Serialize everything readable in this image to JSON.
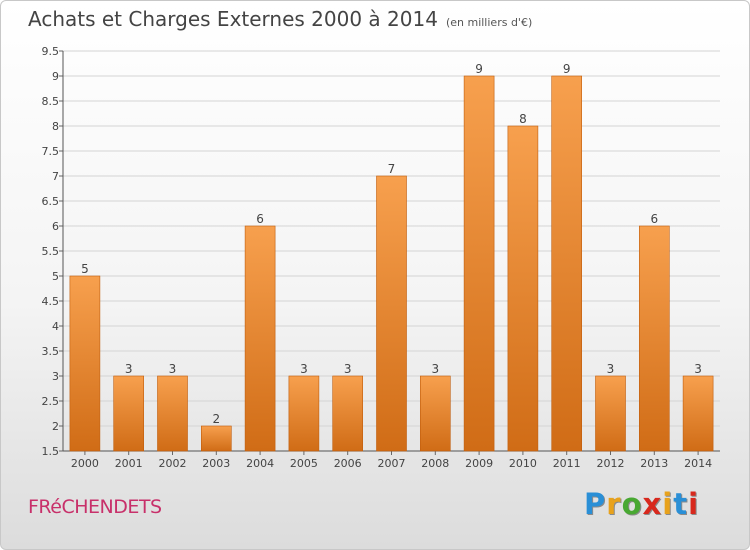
{
  "header": {
    "title": "Achats et Charges Externes 2000 à 2014",
    "unit": "(en milliers d'€)"
  },
  "footer": {
    "commune": "FRéCHENDETS",
    "brand_letters": [
      "P",
      "r",
      "o",
      "x",
      "i",
      "t",
      "i"
    ],
    "brand_colors": [
      "#2a8fd6",
      "#e8a21c",
      "#48a832",
      "#d8281d",
      "#e8a21c",
      "#2a8fd6",
      "#d8281d"
    ]
  },
  "chart_data": {
    "type": "bar",
    "title": "Achats et Charges Externes 2000 à 2014",
    "xlabel": "",
    "ylabel": "",
    "categories": [
      "2000",
      "2001",
      "2002",
      "2003",
      "2004",
      "2005",
      "2006",
      "2007",
      "2008",
      "2009",
      "2010",
      "2011",
      "2012",
      "2013",
      "2014"
    ],
    "values": [
      5,
      3,
      3,
      2,
      6,
      3,
      3,
      7,
      3,
      9,
      8,
      9,
      3,
      6,
      3
    ],
    "ylim": [
      1.5,
      9.5
    ],
    "yticks": [
      "1.5",
      "2",
      "2.5",
      "3",
      "3.5",
      "4",
      "4.5",
      "5",
      "5.5",
      "6",
      "6.5",
      "7",
      "7.5",
      "8",
      "8.5",
      "9",
      "9.5"
    ],
    "grid": true,
    "bar_color_top": "#f7a04e",
    "bar_color_bottom": "#d06c16",
    "bar_edge": "#c05d0c"
  }
}
